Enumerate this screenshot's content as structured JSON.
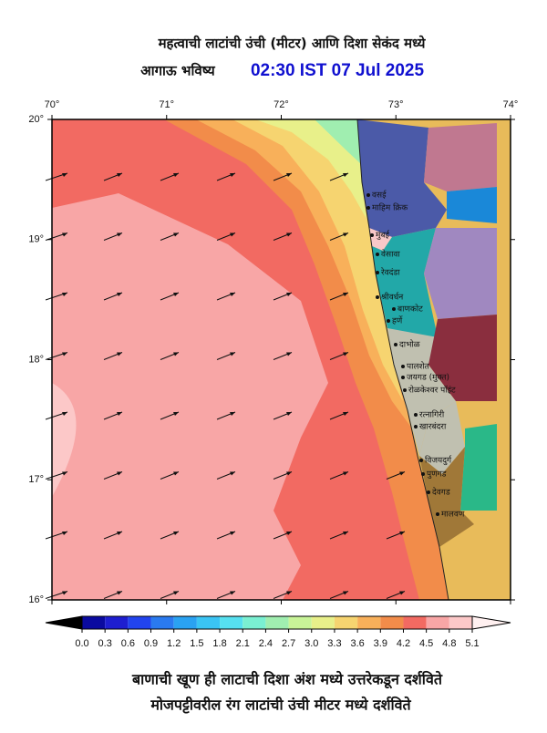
{
  "header": {
    "title": "महत्वाची लाटांची उंची (मीटर) आणि दिशा सेकंद मध्ये",
    "subtitle": "आगाऊ भविष्य",
    "time": "02:30 IST 07 Jul 2025"
  },
  "axes": {
    "lon_labels": [
      "70°",
      "71°",
      "72°",
      "73°",
      "74°"
    ],
    "lat_labels": [
      "20°",
      "19°",
      "18°",
      "17°",
      "16°"
    ]
  },
  "places": [
    "वसई",
    "माहिम क्रिक",
    "मुंबई",
    "वेसावा",
    "रेवदंडा",
    "श्रीवर्धन",
    "बाणकोट",
    "हर्णे",
    "दाभोळ",
    "पालशेत",
    "जयगड (मुक्त)",
    "रोळकेश्वर पॉइंट",
    "रत्नागिरी",
    "खारबंदरा",
    "विजयदुर्ग",
    "पुणगड",
    "देवगड",
    "मालवण"
  ],
  "colorbar": {
    "ticks": [
      {
        "value": 0,
        "label": "0.0"
      },
      {
        "value": 0.3,
        "label": "0.3"
      },
      {
        "value": 0.6,
        "label": "0.6"
      },
      {
        "value": 0.9,
        "label": "0.9"
      },
      {
        "value": 1.2,
        "label": "1.2"
      },
      {
        "value": 1.5,
        "label": "1.5"
      },
      {
        "value": 1.8,
        "label": "1.8"
      },
      {
        "value": 2.1,
        "label": "2.1"
      },
      {
        "value": 2.4,
        "label": "2.4"
      },
      {
        "value": 2.7,
        "label": "2.7"
      },
      {
        "value": 3,
        "label": "3.0"
      },
      {
        "value": 3.3,
        "label": "3.3"
      },
      {
        "value": 3.6,
        "label": "3.6"
      },
      {
        "value": 3.9,
        "label": "3.9"
      },
      {
        "value": 4.2,
        "label": "4.2"
      },
      {
        "value": 4.5,
        "label": "4.5"
      },
      {
        "value": 4.8,
        "label": "4.8"
      },
      {
        "value": 5.1,
        "label": "5.1"
      }
    ],
    "colors": [
      "#0a0aa0",
      "#1e1ed0",
      "#2244ee",
      "#2a7af0",
      "#2aa2f2",
      "#3ac4f4",
      "#56e0f0",
      "#7af0d2",
      "#a0eeb0",
      "#c8f498",
      "#e8f08a",
      "#f6d470",
      "#f8b05a",
      "#f28c4a",
      "#f26a62",
      "#f8a6a6",
      "#fcc8c8",
      "#fff0f0"
    ]
  },
  "footer": {
    "line1": "बाणाची खूण ही लाटाची दिशा अंश मध्ये उत्तरेकडून दर्शविते",
    "line2": "मोजपट्टीवरील रंग लाटांची उंची मीटर मध्ये दर्शविते"
  }
}
